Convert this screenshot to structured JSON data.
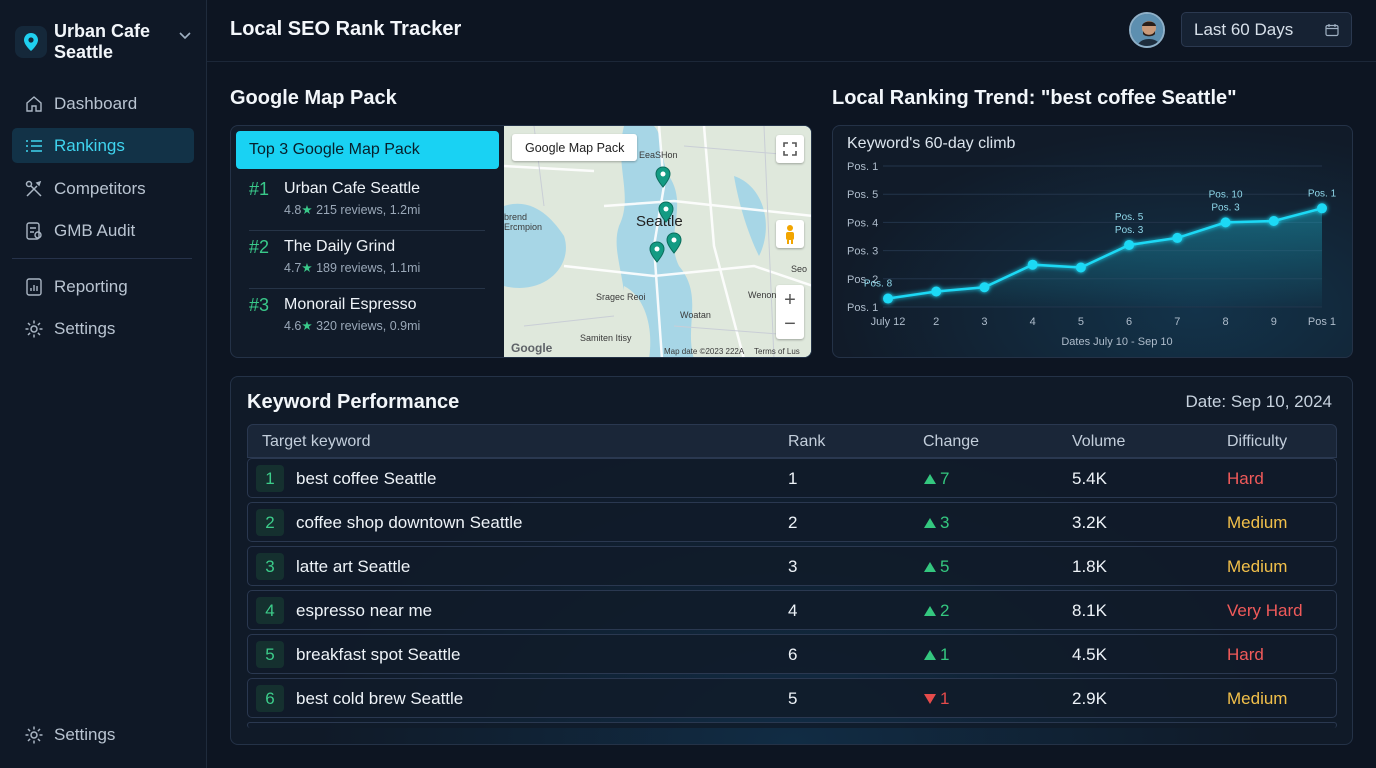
{
  "sidebar": {
    "brand": "Urban Cafe Seattle",
    "items": [
      {
        "label": "Dashboard",
        "icon": "home-icon"
      },
      {
        "label": "Rankings",
        "icon": "list-icon",
        "active": true
      },
      {
        "label": "Competitors",
        "icon": "tools-icon"
      },
      {
        "label": "GMB Audit",
        "icon": "audit-icon"
      },
      {
        "label": "Reporting",
        "icon": "report-icon"
      },
      {
        "label": "Settings",
        "icon": "gear-icon"
      }
    ],
    "footer_settings": "Settings"
  },
  "header": {
    "title": "Local SEO Rank Tracker",
    "date_range": "Last 60 Days"
  },
  "map_pack": {
    "section_title": "Google Map Pack",
    "list_title": "Top 3 Google Map Pack",
    "entries": [
      {
        "rank": "#1",
        "name": "Urban Cafe Seattle",
        "rating": "4.8",
        "meta": "215 reviews, 1.2mi"
      },
      {
        "rank": "#2",
        "name": "The Daily Grind",
        "rating": "4.7",
        "meta": "189 reviews, 1.1mi"
      },
      {
        "rank": "#3",
        "name": "Monorail Espresso",
        "rating": "4.6",
        "meta": "320 reviews, 0.9mi"
      }
    ],
    "map": {
      "tag": "Google Map Pack",
      "city_label": "Seattle",
      "labels": [
        "EeaSHon",
        "brend",
        "Ercmpion",
        "Sragec Reoi",
        "Wenon",
        "Woatan",
        "Samiten Itisy",
        "Seo"
      ],
      "google_logo": "Google",
      "attribution": "Map date ©2023 222A",
      "terms": "Terms of Lus"
    }
  },
  "trend": {
    "section_title": "Local Ranking Trend: \"best coffee Seattle\"",
    "subtitle": "Keyword's 60-day climb",
    "y_tick_labels": [
      "Pos. 1",
      "Pos. 5",
      "Pos. 4",
      "Pos. 3",
      "Pos. 2",
      "Pos. 1"
    ],
    "x_tick_labels": [
      "July 12",
      "2",
      "3",
      "4",
      "5",
      "6",
      "7",
      "8",
      "9",
      "Pos 1"
    ],
    "xlabel": "Dates July 10 - Sep 10",
    "point_labels": [
      {
        "index": 0,
        "text": "Pos. 8"
      },
      {
        "index": 5,
        "text": "Pos. 5"
      },
      {
        "index": 5,
        "text": "Pos. 3"
      },
      {
        "index": 7,
        "text": "Pos. 10"
      },
      {
        "index": 7,
        "text": "Pos. 3"
      },
      {
        "index": 9,
        "text": "Pos. 1"
      }
    ],
    "accent": "#1fd9f5"
  },
  "chart_data": {
    "type": "line",
    "title": "Keyword's 60-day climb",
    "xlabel": "Dates July 10 - Sep 10",
    "categories": [
      "July 12",
      "2",
      "3",
      "4",
      "5",
      "6",
      "7",
      "8",
      "9",
      "Pos 1"
    ],
    "series": [
      {
        "values": [
          0.3,
          0.55,
          0.7,
          1.5,
          1.4,
          2.2,
          2.45,
          3.0,
          3.05,
          3.5
        ]
      }
    ],
    "ylim": [
      0,
      5
    ],
    "grid": true
  },
  "keywords": {
    "section_title": "Keyword Performance",
    "date": "Date: Sep 10, 2024",
    "columns": [
      "Target keyword",
      "Rank",
      "Change",
      "Volume",
      "Difficulty"
    ],
    "rows": [
      {
        "idx": "1",
        "keyword": "best coffee Seattle",
        "rank": "1",
        "dir": "up",
        "change": "7",
        "volume": "5.4K",
        "difficulty": "Hard"
      },
      {
        "idx": "2",
        "keyword": "coffee shop downtown Seattle",
        "rank": "2",
        "dir": "up",
        "change": "3",
        "volume": "3.2K",
        "difficulty": "Medium"
      },
      {
        "idx": "3",
        "keyword": "latte art Seattle",
        "rank": "3",
        "dir": "up",
        "change": "5",
        "volume": "1.8K",
        "difficulty": "Medium"
      },
      {
        "idx": "4",
        "keyword": "espresso near me",
        "rank": "4",
        "dir": "up",
        "change": "2",
        "volume": "8.1K",
        "difficulty": "Very Hard"
      },
      {
        "idx": "5",
        "keyword": "breakfast spot Seattle",
        "rank": "6",
        "dir": "up",
        "change": "1",
        "volume": "4.5K",
        "difficulty": "Hard"
      },
      {
        "idx": "6",
        "keyword": "best cold brew Seattle",
        "rank": "5",
        "dir": "down",
        "change": "1",
        "volume": "2.9K",
        "difficulty": "Medium"
      }
    ]
  }
}
